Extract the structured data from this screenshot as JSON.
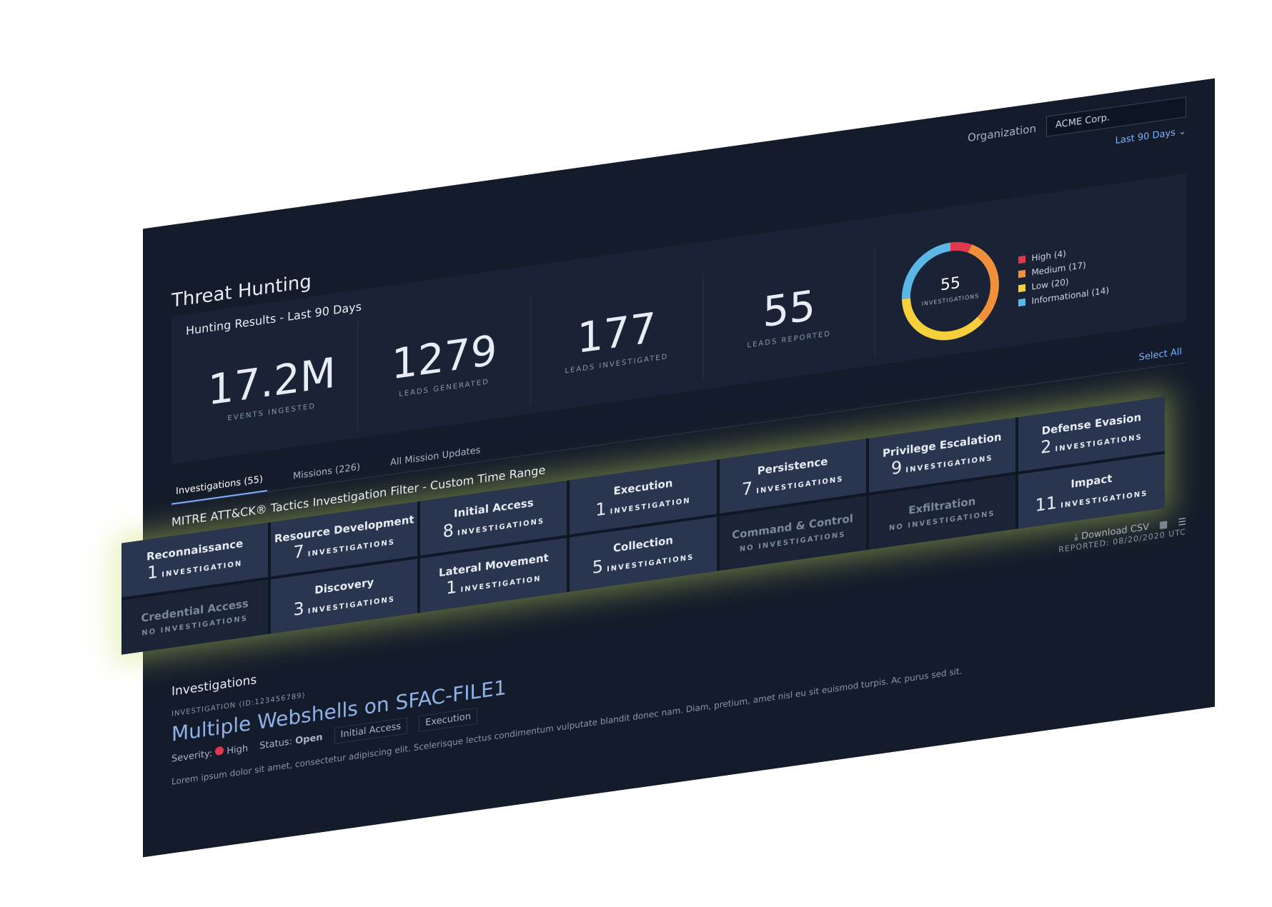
{
  "top_bar": {
    "org_label": "Organization",
    "org_value": "ACME Corp.",
    "range": "Last 90 Days"
  },
  "header": {
    "title": "Threat Hunting",
    "subtitle": "Hunting Results - Last 90 Days"
  },
  "stats": [
    {
      "value": "17.2M",
      "label": "EVENTS INGESTED"
    },
    {
      "value": 1279,
      "label": "LEADS GENERATED"
    },
    {
      "value": 177,
      "label": "LEADS INVESTIGATED"
    },
    {
      "value": 55,
      "label": "LEADS REPORTED"
    }
  ],
  "donut": {
    "center_value": 55,
    "center_label": "INVESTIGATIONS",
    "segments": [
      {
        "name": "High",
        "value": 4,
        "label": "High (4)",
        "color": "#e0394f"
      },
      {
        "name": "Medium",
        "value": 17,
        "label": "Medium (17)",
        "color": "#f0903a"
      },
      {
        "name": "Low",
        "value": 20,
        "label": "Low (20)",
        "color": "#f5d03b"
      },
      {
        "name": "Informational",
        "value": 14,
        "label": "Informational (14)",
        "color": "#5bb8e6"
      }
    ]
  },
  "tabs": [
    "Investigations (55)",
    "Missions (226)",
    "All Mission Updates"
  ],
  "select_all": "Select All",
  "filter_title": "MITRE ATT&CK® Tactics Investigation Filter - Custom Time Range",
  "tactics": [
    {
      "name": "Reconnaissance",
      "count": 1,
      "unit": "INVESTIGATION"
    },
    {
      "name": "Resource Development",
      "count": 7,
      "unit": "INVESTIGATIONS"
    },
    {
      "name": "Initial Access",
      "count": 8,
      "unit": "INVESTIGATIONS"
    },
    {
      "name": "Execution",
      "count": 1,
      "unit": "INVESTIGATION"
    },
    {
      "name": "Persistence",
      "count": 7,
      "unit": "INVESTIGATIONS"
    },
    {
      "name": "Privilege Escalation",
      "count": 9,
      "unit": "INVESTIGATIONS"
    },
    {
      "name": "Defense Evasion",
      "count": 2,
      "unit": "INVESTIGATIONS"
    },
    {
      "name": "Credential Access",
      "empty": "NO INVESTIGATIONS"
    },
    {
      "name": "Discovery",
      "count": 3,
      "unit": "INVESTIGATIONS"
    },
    {
      "name": "Lateral Movement",
      "count": 1,
      "unit": "INVESTIGATION"
    },
    {
      "name": "Collection",
      "count": 5,
      "unit": "INVESTIGATIONS"
    },
    {
      "name": "Command & Control",
      "empty": "NO INVESTIGATIONS"
    },
    {
      "name": "Exfiltration",
      "empty": "NO INVESTIGATIONS"
    },
    {
      "name": "Impact",
      "count": 11,
      "unit": "INVESTIGATIONS"
    }
  ],
  "toolbar": {
    "download": "Download CSV"
  },
  "investigations": {
    "title": "Investigations",
    "reported": "REPORTED: 08/20/2020 UTC",
    "item": {
      "id": "INVESTIGATION (ID:123456789)",
      "title": "Multiple Webshells on SFAC-FILE1",
      "severity_label": "Severity:",
      "severity": "High",
      "status_label": "Status:",
      "status": "Open",
      "tags": [
        "Initial Access",
        "Execution"
      ],
      "description": "Lorem ipsum dolor sit amet, consectetur adipiscing elit. Scelerisque lectus condimentum vulputate blandit donec nam. Diam, pretium, amet nisl eu sit euismod turpis. Ac purus sed sit."
    }
  }
}
